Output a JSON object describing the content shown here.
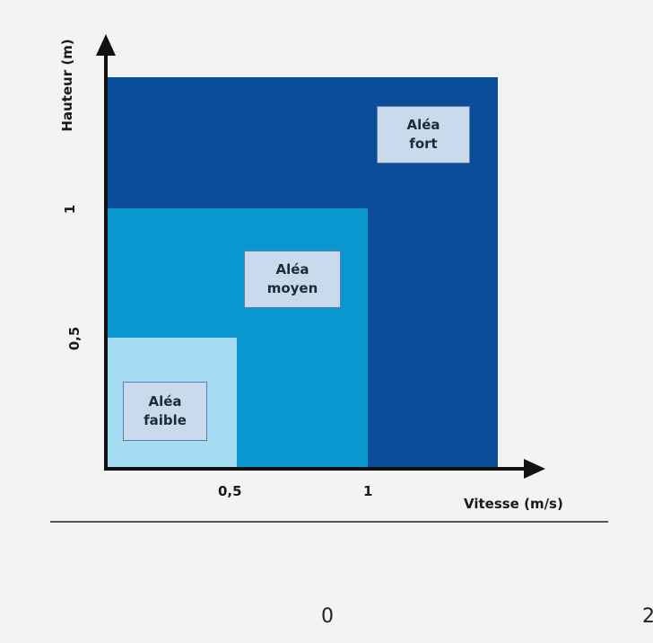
{
  "diagram": {
    "y_axis_label": "Hauteur (m)",
    "x_axis_label": "Vitesse (m/s)",
    "x_ticks": [
      "0,5",
      "1"
    ],
    "y_ticks": [
      "1",
      "0,5"
    ],
    "zones": [
      {
        "id": "faible",
        "label_line1": "Aléa",
        "label_line2": "faible",
        "color": "#a6dcf3"
      },
      {
        "id": "moyen",
        "label_line1": "Aléa",
        "label_line2": "moyen",
        "color": "#0a96cf"
      },
      {
        "id": "fort",
        "label_line1": "Aléa",
        "label_line2": "fort",
        "color": "#0a4e99"
      }
    ],
    "label_box_color": "#c9daec"
  },
  "footer": {
    "left_text": "0",
    "right_text": "2"
  }
}
